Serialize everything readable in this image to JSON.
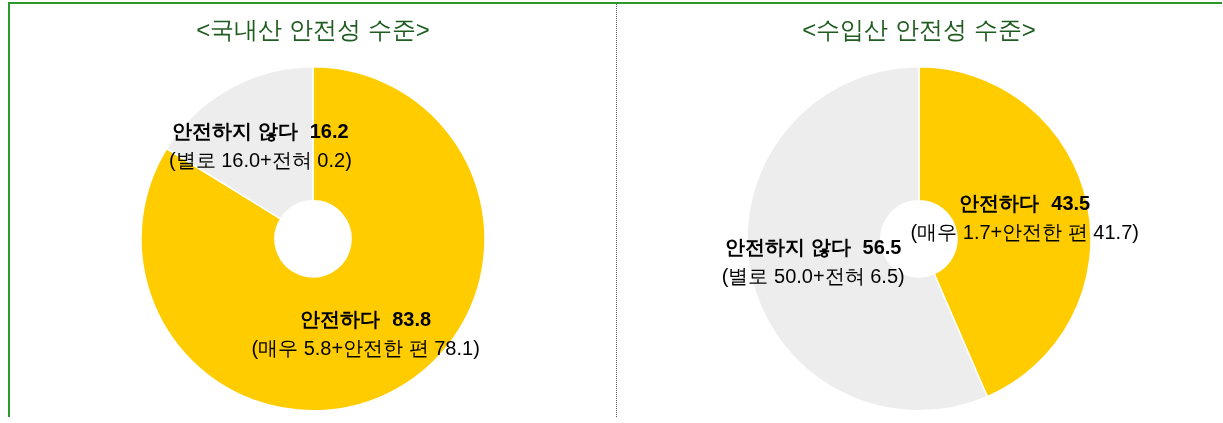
{
  "chart_data": [
    {
      "type": "donut",
      "title": "<국내산 안전성 수준>",
      "categories": [
        "안전하다",
        "안전하지 않다"
      ],
      "values": [
        83.8,
        16.2
      ],
      "colors": [
        "#ffcc00",
        "#ededed"
      ],
      "data_labels": true,
      "legend": false,
      "annotations": [
        "(매우 5.8+안전한 편 78.1)",
        "(별로 16.0+전혀 0.2)"
      ]
    },
    {
      "type": "donut",
      "title": "<수입산 안전성 수준>",
      "categories": [
        "안전하다",
        "안전하지 않다"
      ],
      "values": [
        43.5,
        56.5
      ],
      "colors": [
        "#ffcc00",
        "#ededed"
      ],
      "data_labels": true,
      "legend": false,
      "annotations": [
        "(매우 1.7+안전한 편 41.7)",
        "(별로 50.0+전혀 6.5)"
      ]
    }
  ]
}
